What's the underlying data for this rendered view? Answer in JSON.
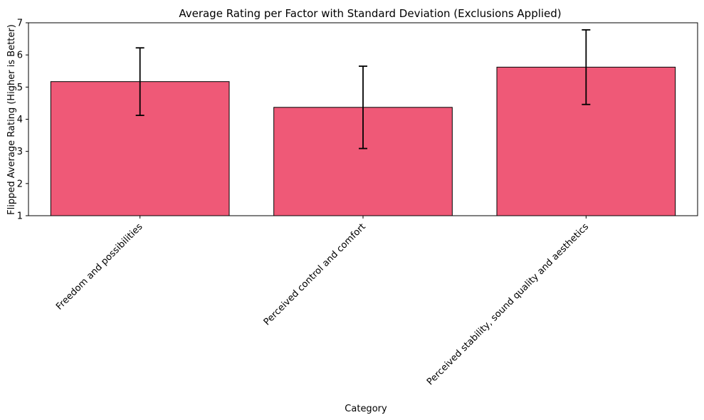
{
  "chart_data": {
    "type": "bar",
    "title": "Average Rating per Factor with Standard Deviation (Exclusions Applied)",
    "xlabel": "Category",
    "ylabel": "Flipped Average Rating (Higher is Better)",
    "ylim": [
      1,
      7
    ],
    "yticks": [
      1,
      2,
      3,
      4,
      5,
      6,
      7
    ],
    "categories": [
      "Freedom and possibilities",
      "Perceived control and comfort",
      "Perceived stability, sound quality and aesthetics"
    ],
    "values": [
      5.17,
      4.37,
      5.62
    ],
    "std": [
      1.05,
      1.28,
      1.16
    ],
    "bar_color": "#ef5977",
    "edge_color": "#000000",
    "grid": false,
    "legend": "none"
  }
}
